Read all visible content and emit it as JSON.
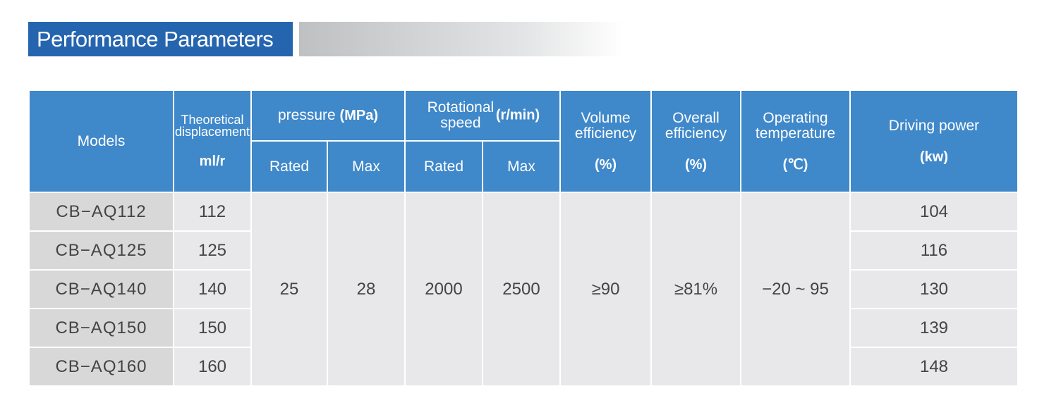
{
  "title": "Performance Parameters",
  "colors": {
    "title_bg": "#2565b0",
    "header_bg": "#3f88ca",
    "cell_bg": "#e8e8ea",
    "model_bg": "#d8d8d9"
  },
  "headers": {
    "models": "Models",
    "displacement": "Theoretical displacement",
    "displacement_unit": "ml/r",
    "pressure": "pressure",
    "pressure_unit": "(MPa)",
    "speed": "Rotational speed",
    "speed_unit": "(r/min)",
    "rated": "Rated",
    "max": "Max",
    "volume_eff": "Volume efficiency",
    "volume_eff_unit": "(%)",
    "overall_eff": "Overall efficiency",
    "overall_eff_unit": "(%)",
    "temp": "Operating temperature",
    "temp_unit": "(℃)",
    "power": "Driving power",
    "power_unit": "(kw)"
  },
  "shared": {
    "pressure_rated": "25",
    "pressure_max": "28",
    "speed_rated": "2000",
    "speed_max": "2500",
    "volume_eff": "≥90",
    "overall_eff": "≥81%",
    "temp": "−20 ~ 95"
  },
  "rows": [
    {
      "model": "CB−AQ112",
      "displacement": "112",
      "power": "104"
    },
    {
      "model": "CB−AQ125",
      "displacement": "125",
      "power": "116"
    },
    {
      "model": "CB−AQ140",
      "displacement": "140",
      "power": "130"
    },
    {
      "model": "CB−AQ150",
      "displacement": "150",
      "power": "139"
    },
    {
      "model": "CB−AQ160",
      "displacement": "160",
      "power": "148"
    }
  ]
}
